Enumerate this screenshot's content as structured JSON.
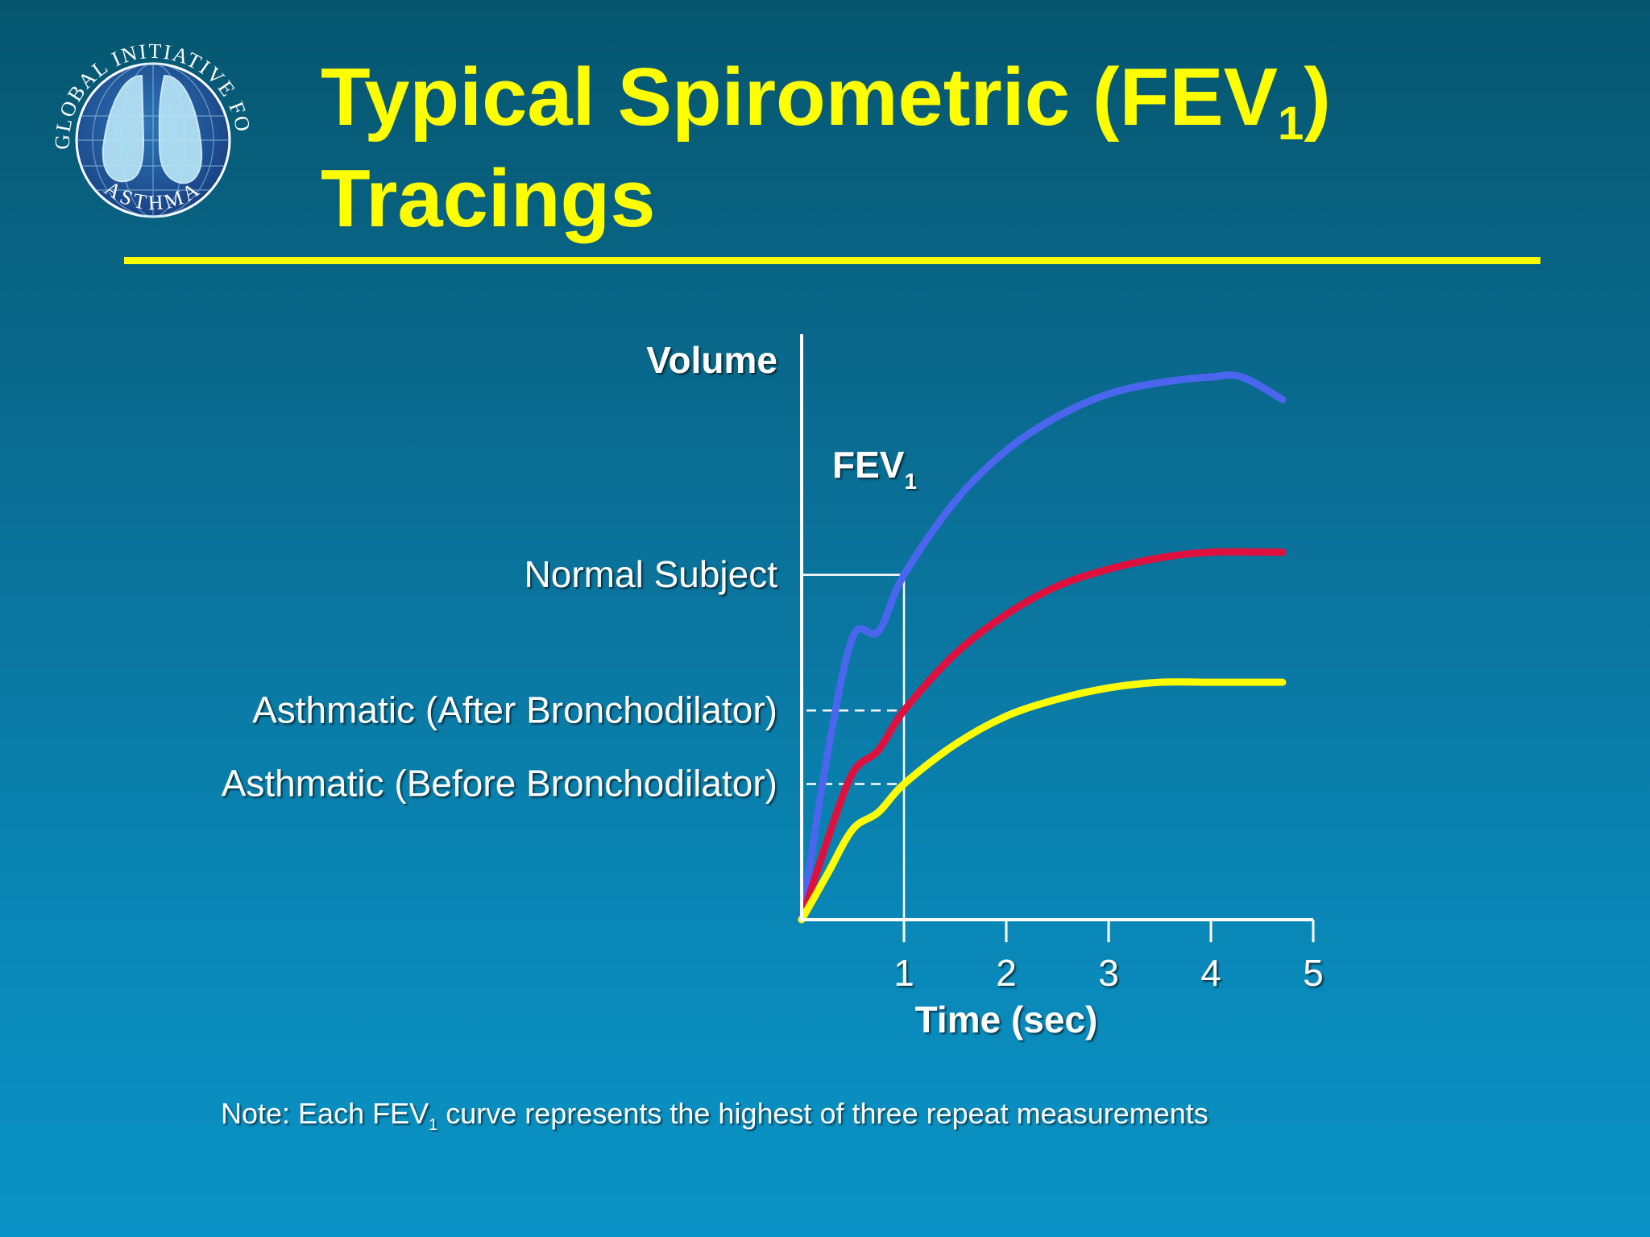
{
  "logo": {
    "top_text": "GLOBAL INITIATIVE FOR",
    "bottom_text": "ASTHMA"
  },
  "title": {
    "line1_main": "Typical Spirometric (FEV",
    "line1_sub": "1",
    "line1_end": ")",
    "line2": "Tracings"
  },
  "note": {
    "prefix": "Note:  Each FEV",
    "sub": "1",
    "suffix": " curve represents the highest of three repeat measurements"
  },
  "colors": {
    "title": "#ffff00",
    "normal": "#4a66ee",
    "after": "#e0103e",
    "before": "#ffff00",
    "axis": "#ffffff"
  },
  "chart_data": {
    "type": "line",
    "ylabel": "Volume",
    "xlabel": "Time (sec)",
    "x_ticks": [
      1,
      2,
      3,
      4,
      5
    ],
    "xlim": [
      0,
      5
    ],
    "ylim": [
      0,
      1
    ],
    "fev1_label": {
      "main": "FEV",
      "sub": "1"
    },
    "fev1_marker_x": 1,
    "series": [
      {
        "name": "Normal Subject",
        "color": "#4a66ee",
        "x": [
          0,
          0.25,
          0.5,
          0.75,
          1,
          1.5,
          2,
          2.5,
          3,
          3.5,
          4,
          4.3,
          4.7
        ],
        "y": [
          0,
          0.29,
          0.5,
          0.51,
          0.61,
          0.74,
          0.83,
          0.89,
          0.93,
          0.95,
          0.96,
          0.96,
          0.92
        ]
      },
      {
        "name": "Asthmatic (After Bronchodilator)",
        "color": "#e0103e",
        "x": [
          0,
          0.25,
          0.5,
          0.75,
          1,
          1.5,
          2,
          2.5,
          3,
          3.5,
          4,
          4.7
        ],
        "y": [
          0,
          0.14,
          0.26,
          0.3,
          0.37,
          0.47,
          0.54,
          0.59,
          0.62,
          0.64,
          0.65,
          0.65
        ]
      },
      {
        "name": "Asthmatic (Before Bronchodilator)",
        "color": "#ffff00",
        "x": [
          0,
          0.25,
          0.5,
          0.75,
          1,
          1.5,
          2,
          2.5,
          3,
          3.5,
          4,
          4.7
        ],
        "y": [
          0,
          0.08,
          0.16,
          0.19,
          0.24,
          0.31,
          0.36,
          0.39,
          0.41,
          0.42,
          0.42,
          0.42
        ]
      }
    ],
    "fev1_levels": {
      "Normal Subject": 0.61,
      "Asthmatic (After Bronchodilator)": 0.37,
      "Asthmatic (Before Bronchodilator)": 0.24
    }
  }
}
